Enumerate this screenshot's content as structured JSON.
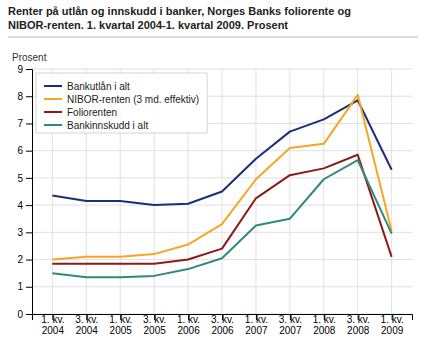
{
  "chart_data": {
    "type": "line",
    "title": [
      "Renter på utlån og innskudd i banker, Norges Banks foliorente og",
      "NIBOR-renten. 1. kvartal 2004-1. kvartal 2009. Prosent"
    ],
    "ylabel": "Prosent",
    "categories": [
      "1. kv.\n2004",
      "3. kv.\n2004",
      "1. kv.\n2005",
      "3. kv.\n2005",
      "1. kv.\n2006",
      "3. kv.\n2006",
      "1. kv.\n2007",
      "3. kv.\n2007",
      "1. kv.\n2008",
      "3. kv.\n2008",
      "1. kv.\n2009"
    ],
    "series": [
      {
        "name": "Bankutlån i alt",
        "color": "#1a2e7a",
        "values": [
          4.35,
          4.15,
          4.15,
          4.0,
          4.05,
          4.5,
          5.7,
          6.7,
          7.15,
          7.85,
          5.3
        ]
      },
      {
        "name": "NIBOR-renten (3 md. effektiv)",
        "color": "#f5a623",
        "values": [
          2.0,
          2.1,
          2.1,
          2.2,
          2.55,
          3.3,
          4.95,
          6.1,
          6.25,
          8.05,
          3.05
        ]
      },
      {
        "name": "Foliorenten",
        "color": "#8b1a1a",
        "values": [
          1.85,
          1.85,
          1.85,
          1.85,
          2.0,
          2.4,
          4.25,
          5.1,
          5.35,
          5.85,
          2.1
        ]
      },
      {
        "name": "Bankinnskudd i alt",
        "color": "#2e8b7a",
        "values": [
          1.5,
          1.35,
          1.35,
          1.4,
          1.65,
          2.05,
          3.25,
          3.5,
          4.95,
          5.65,
          2.95
        ]
      }
    ],
    "ylim": [
      0,
      9
    ],
    "yticks": [
      0,
      1,
      2,
      3,
      4,
      5,
      6,
      7,
      8,
      9
    ],
    "grid": true,
    "legend": "upper left"
  }
}
